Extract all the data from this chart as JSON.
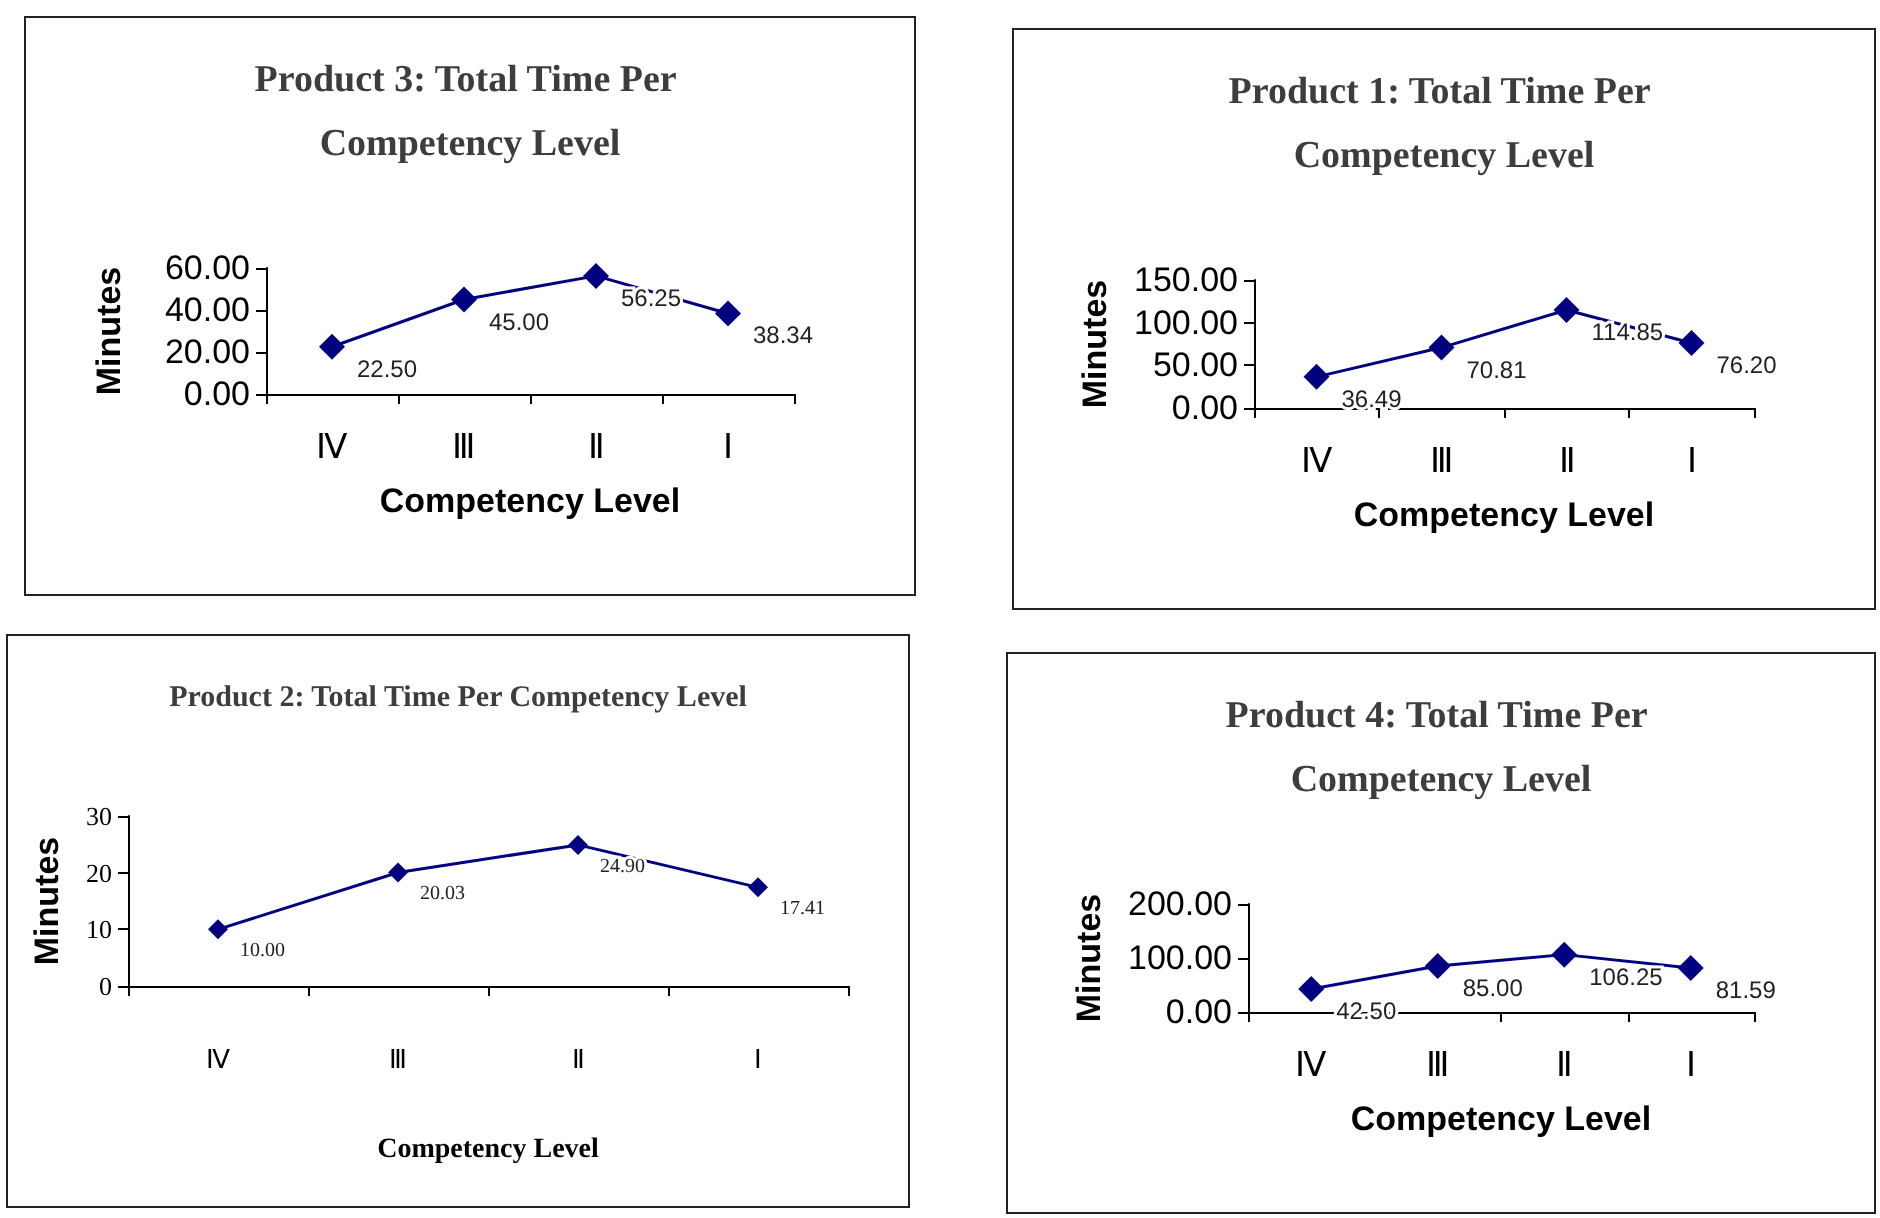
{
  "chart_data": [
    {
      "type": "line",
      "title": "Product 3: Total Time Per Competency Level",
      "xlabel": "Competency Level",
      "ylabel": "Minutes",
      "categories": [
        "Ⅳ",
        "Ⅲ",
        "Ⅱ",
        "Ⅰ"
      ],
      "series": [
        {
          "color": "#000080",
          "values": [
            22.5,
            45.0,
            56.25,
            38.34
          ],
          "value_labels": [
            "22.50",
            "45.00",
            "56.25",
            "38.34"
          ]
        }
      ],
      "ylim": [
        0,
        60
      ],
      "yticks": [
        {
          "value": 0,
          "label": "0.00"
        },
        {
          "value": 20,
          "label": "20.00"
        },
        {
          "value": 40,
          "label": "40.00"
        },
        {
          "value": 60,
          "label": "60.00"
        }
      ],
      "marker": "diamond",
      "grid": false
    },
    {
      "type": "line",
      "title": "Product 1: Total Time Per Competency Level",
      "xlabel": "Competency Level",
      "ylabel": "Minutes",
      "categories": [
        "Ⅳ",
        "Ⅲ",
        "Ⅱ",
        "Ⅰ"
      ],
      "series": [
        {
          "color": "#000080",
          "values": [
            36.49,
            70.81,
            114.85,
            76.2
          ],
          "value_labels": [
            "36.49",
            "70.81",
            "114.85",
            "76.20"
          ]
        }
      ],
      "ylim": [
        0,
        150
      ],
      "yticks": [
        {
          "value": 0,
          "label": "0.00"
        },
        {
          "value": 50,
          "label": "50.00"
        },
        {
          "value": 100,
          "label": "100.00"
        },
        {
          "value": 150,
          "label": "150.00"
        }
      ],
      "marker": "diamond",
      "grid": false
    },
    {
      "type": "line",
      "title": "Product 2: Total Time Per Competency Level",
      "xlabel": "Competency Level",
      "ylabel": "Minutes",
      "categories": [
        "Ⅳ",
        "Ⅲ",
        "Ⅱ",
        "Ⅰ"
      ],
      "series": [
        {
          "color": "#000080",
          "values": [
            10.0,
            20.03,
            24.9,
            17.41
          ],
          "value_labels": [
            "10.00",
            "20.03",
            "24.90",
            "17.41"
          ]
        }
      ],
      "ylim": [
        0,
        30
      ],
      "yticks": [
        0,
        10,
        20,
        30
      ],
      "marker": "diamond",
      "grid": false
    },
    {
      "type": "line",
      "title": "Product 4: Total Time Per Competency Level",
      "xlabel": "Competency Level",
      "ylabel": "Minutes",
      "categories": [
        "Ⅳ",
        "Ⅲ",
        "Ⅱ",
        "Ⅰ"
      ],
      "series": [
        {
          "color": "#000080",
          "values": [
            42.5,
            85.0,
            106.25,
            81.59
          ],
          "value_labels": [
            "42.50",
            "85.00",
            "106.25",
            "81.59"
          ]
        }
      ],
      "ylim": [
        0,
        200
      ],
      "yticks": [
        {
          "value": 0,
          "label": "0.00"
        },
        {
          "value": 100,
          "label": "100.00"
        },
        {
          "value": 200,
          "label": "200.00"
        }
      ],
      "marker": "diamond",
      "grid": false
    }
  ]
}
